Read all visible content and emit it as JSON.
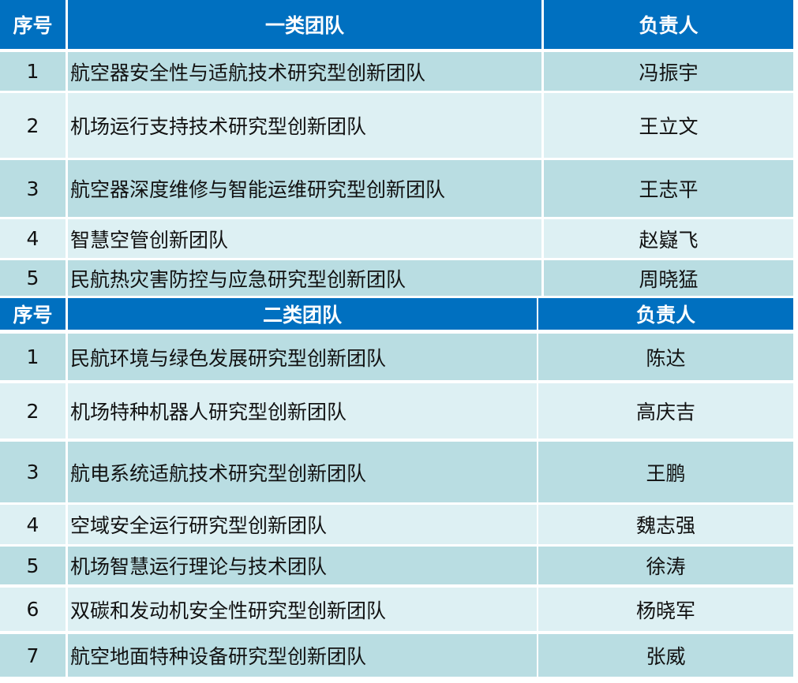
{
  "colors": {
    "header": "#0070C0",
    "row_dark": "#B9DDE2",
    "row_light": "#DDF0F3"
  },
  "tables": [
    {
      "headers": [
        "序号",
        "一类团队",
        "负责人"
      ],
      "rows": [
        [
          "1",
          "航空器安全性与适航技术研究型创新团队",
          "冯振宇"
        ],
        [
          "2",
          "机场运行支持技术研究型创新团队",
          "王立文"
        ],
        [
          "3",
          "航空器深度维修与智能运维研究型创新团队",
          "王志平"
        ],
        [
          "4",
          "智慧空管创新团队",
          "赵嶷飞"
        ],
        [
          "5",
          "民航热灾害防控与应急研究型创新团队",
          "周晓猛"
        ]
      ]
    },
    {
      "headers": [
        "序号",
        "二类团队",
        "负责人"
      ],
      "rows": [
        [
          "1",
          "民航环境与绿色发展研究型创新团队",
          "陈达"
        ],
        [
          "2",
          "机场特种机器人研究型创新团队",
          "高庆吉"
        ],
        [
          "3",
          "航电系统适航技术研究型创新团队",
          "王鹏"
        ],
        [
          "4",
          "空域安全运行研究型创新团队",
          "魏志强"
        ],
        [
          "5",
          "机场智慧运行理论与技术团队",
          "徐涛"
        ],
        [
          "6",
          "双碳和发动机安全性研究型创新团队",
          "杨晓军"
        ],
        [
          "7",
          "航空地面特种设备研究型创新团队",
          "张威"
        ]
      ]
    }
  ]
}
